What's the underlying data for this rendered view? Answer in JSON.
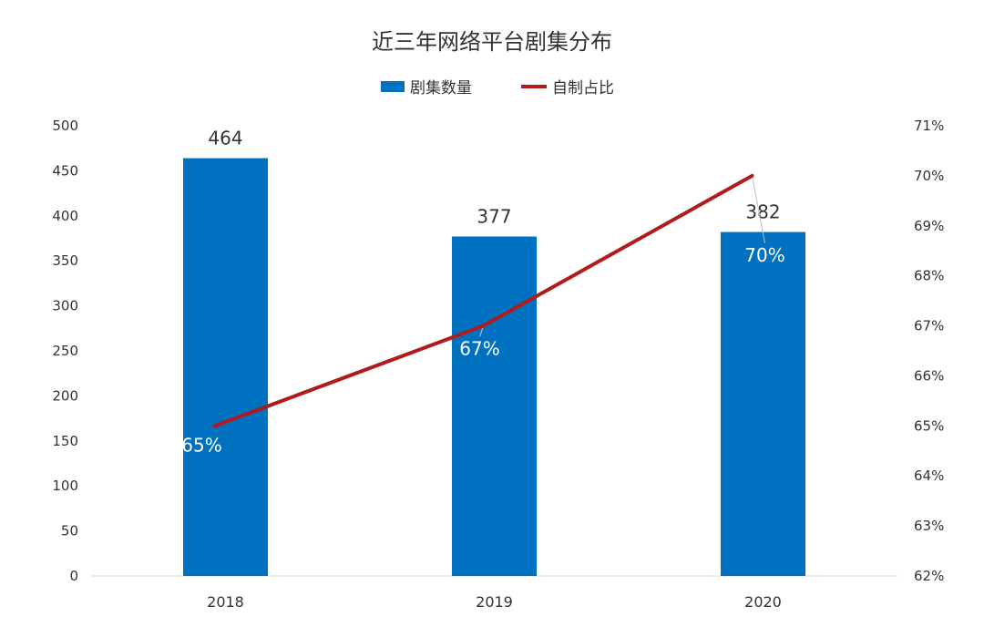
{
  "chart_data": {
    "type": "bar",
    "title": "近三年网络平台剧集分布",
    "categories": [
      "2018",
      "2019",
      "2020"
    ],
    "series": [
      {
        "name": "剧集数量",
        "kind": "bar",
        "axis": "left",
        "values": [
          464,
          377,
          382
        ],
        "labels": [
          "464",
          "377",
          "382"
        ]
      },
      {
        "name": "自制占比",
        "kind": "line",
        "axis": "right",
        "values": [
          65,
          67,
          70
        ],
        "labels": [
          "65%",
          "67%",
          "70%"
        ]
      }
    ],
    "y_left": {
      "min": 0,
      "max": 500,
      "step": 50,
      "ticks": [
        "0",
        "50",
        "100",
        "150",
        "200",
        "250",
        "300",
        "350",
        "400",
        "450",
        "500"
      ]
    },
    "y_right": {
      "min": 62,
      "max": 71,
      "step": 1,
      "ticks": [
        "62%",
        "63%",
        "64%",
        "65%",
        "66%",
        "67%",
        "68%",
        "69%",
        "70%",
        "71%"
      ]
    },
    "legend_position": "top-center",
    "grid": false,
    "colors": {
      "bar": "#0070c0",
      "line": "#b01c1c",
      "axis": "#d9d9d9",
      "leader": "#bfbfbf"
    }
  }
}
